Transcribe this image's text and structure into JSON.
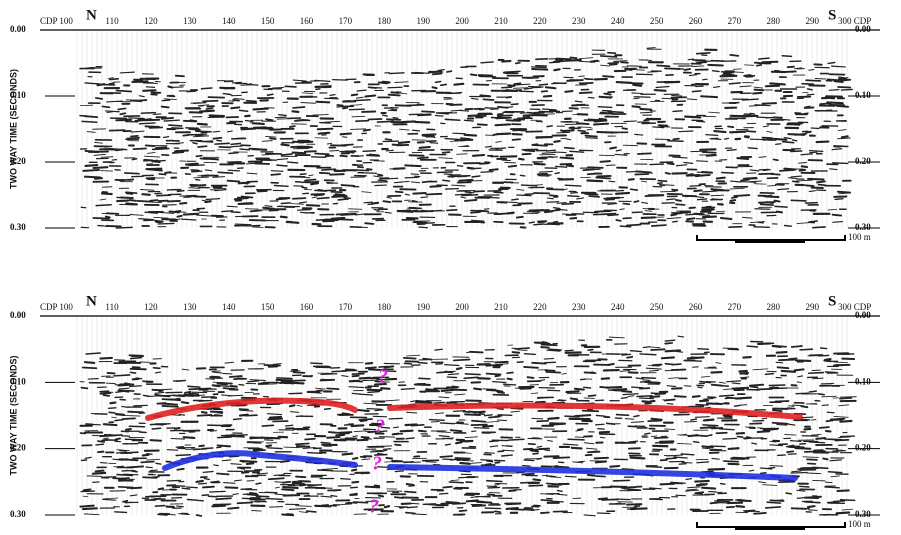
{
  "section": {
    "north": "N",
    "south": "S",
    "cdp_left": "CDP 100",
    "cdp_labels": [
      "110",
      "120",
      "130",
      "140",
      "150",
      "160",
      "170",
      "180",
      "190",
      "200",
      "210",
      "220",
      "230",
      "240",
      "250",
      "260",
      "270",
      "280",
      "290"
    ],
    "cdp_right": "300 CDP",
    "time_labels": [
      "0.00",
      "0.10",
      "0.20",
      "0.30"
    ],
    "y_axis_label": "TWO WAY TIME (SECONDS)",
    "scale_label": "100 m"
  },
  "interpretation": {
    "fault_marks": [
      "?",
      "?",
      "?",
      "?"
    ]
  }
}
